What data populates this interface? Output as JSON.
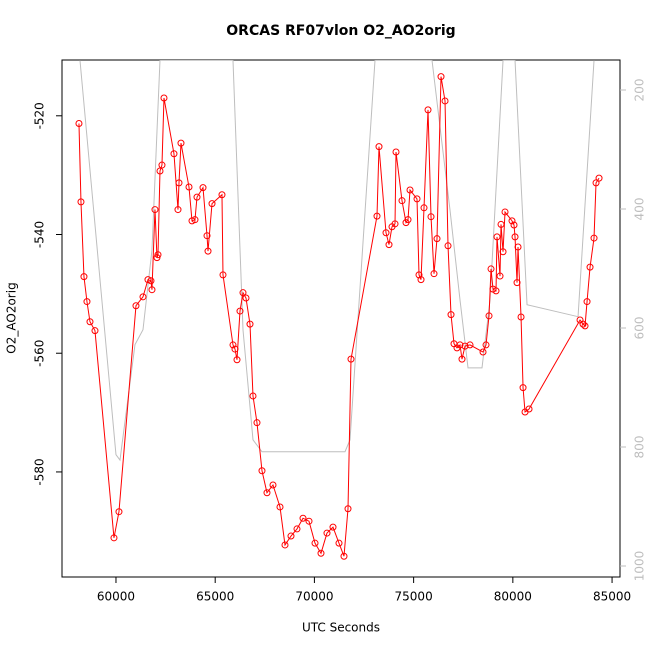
{
  "chart_data": {
    "type": "line",
    "title": "ORCAS RF07vlon O2_AO2orig",
    "x_label": "UTC Seconds",
    "y_label": "O2_AO2orig",
    "xlim": [
      57280,
      85400
    ],
    "xticks": [
      60000,
      65000,
      70000,
      75000,
      80000,
      85000
    ],
    "ylim": [
      -597.7,
      -510.6
    ],
    "yticks": [
      -520,
      -540,
      -560,
      -580
    ],
    "y2lim": [
      1018.5,
      149.6
    ],
    "y2ticks": [
      200,
      400,
      600,
      800,
      1000
    ],
    "series": [
      {
        "name": "O2_AO2orig",
        "color": "#ff0000",
        "marker": "circle",
        "x": [
          58135,
          58236,
          58387,
          58538,
          58690,
          58942,
          59899,
          60151,
          61008,
          61361,
          61613,
          61764,
          61814,
          61966,
          62066,
          62117,
          62218,
          62318,
          62419,
          62923,
          63125,
          63176,
          63276,
          63680,
          63831,
          63982,
          64083,
          64386,
          64588,
          64638,
          64840,
          65342,
          65393,
          65897,
          65998,
          66099,
          66250,
          66401,
          66552,
          66754,
          66905,
          67106,
          67358,
          67610,
          67913,
          68266,
          68518,
          68820,
          69122,
          69425,
          69727,
          70030,
          70332,
          70634,
          70937,
          71239,
          71491,
          71693,
          71844,
          73154,
          73255,
          73608,
          73759,
          73910,
          74062,
          74112,
          74414,
          74616,
          74717,
          74818,
          75170,
          75271,
          75372,
          75523,
          75725,
          75876,
          76027,
          76178,
          76380,
          76582,
          76733,
          76884,
          77035,
          77186,
          77338,
          77438,
          77590,
          77842,
          78497,
          78648,
          78799,
          78900,
          79000,
          79152,
          79202,
          79353,
          79404,
          79505,
          79606,
          79958,
          80059,
          80110,
          80211,
          80261,
          80413,
          80514,
          80614,
          80816,
          83386,
          83538,
          83638,
          83739,
          83890,
          84091,
          84192,
          84344
        ],
        "values": [
          -521.3,
          -534.5,
          -547.1,
          -551.3,
          -554.7,
          -556.2,
          -591.1,
          -586.7,
          -552.0,
          -550.5,
          -547.6,
          -547.8,
          -549.3,
          -535.8,
          -543.9,
          -543.4,
          -529.3,
          -528.3,
          -517.0,
          -526.4,
          -535.8,
          -531.3,
          -524.6,
          -532.0,
          -537.7,
          -537.5,
          -533.7,
          -532.1,
          -540.2,
          -542.8,
          -534.8,
          -533.3,
          -546.8,
          -558.6,
          -559.3,
          -561.1,
          -552.9,
          -549.8,
          -550.7,
          -555.1,
          -567.2,
          -571.7,
          -579.8,
          -583.5,
          -582.2,
          -585.9,
          -592.3,
          -590.8,
          -589.6,
          -587.8,
          -588.3,
          -592.0,
          -593.7,
          -590.3,
          -589.3,
          -592.0,
          -594.2,
          -586.2,
          -561.0,
          -536.9,
          -525.2,
          -539.7,
          -541.7,
          -538.7,
          -538.2,
          -526.1,
          -534.3,
          -538.0,
          -537.5,
          -532.5,
          -534.0,
          -546.8,
          -547.6,
          -535.5,
          -519.0,
          -537.0,
          -546.6,
          -540.7,
          -513.4,
          -517.5,
          -541.9,
          -553.5,
          -558.4,
          -559.1,
          -558.6,
          -561.0,
          -558.8,
          -558.6,
          -559.8,
          -558.6,
          -553.7,
          -545.8,
          -549.2,
          -549.5,
          -540.4,
          -547.0,
          -538.3,
          -542.9,
          -536.2,
          -537.7,
          -538.4,
          -540.4,
          -548.1,
          -542.1,
          -553.9,
          -565.8,
          -569.9,
          -569.4,
          -554.4,
          -555.1,
          -555.4,
          -551.3,
          -545.5,
          -540.6,
          -531.3,
          -530.5
        ]
      },
      {
        "name": "vlon",
        "color": "#bebebe",
        "axis": "y2",
        "x": [
          58186,
          60000,
          60202,
          60958,
          61361,
          61814,
          62218,
          65897,
          66401,
          66905,
          67358,
          71542,
          71794,
          73054,
          75926,
          76834,
          77338,
          77741,
          78446,
          78850,
          79506,
          80110,
          80715,
          83286,
          84091
        ],
        "values": [
          150,
          813,
          822,
          628,
          603,
          469,
          150,
          150,
          603,
          788,
          808,
          808,
          788,
          150,
          150,
          402,
          553,
          667,
          667,
          553,
          150,
          150,
          561,
          581,
          150
        ]
      }
    ]
  }
}
